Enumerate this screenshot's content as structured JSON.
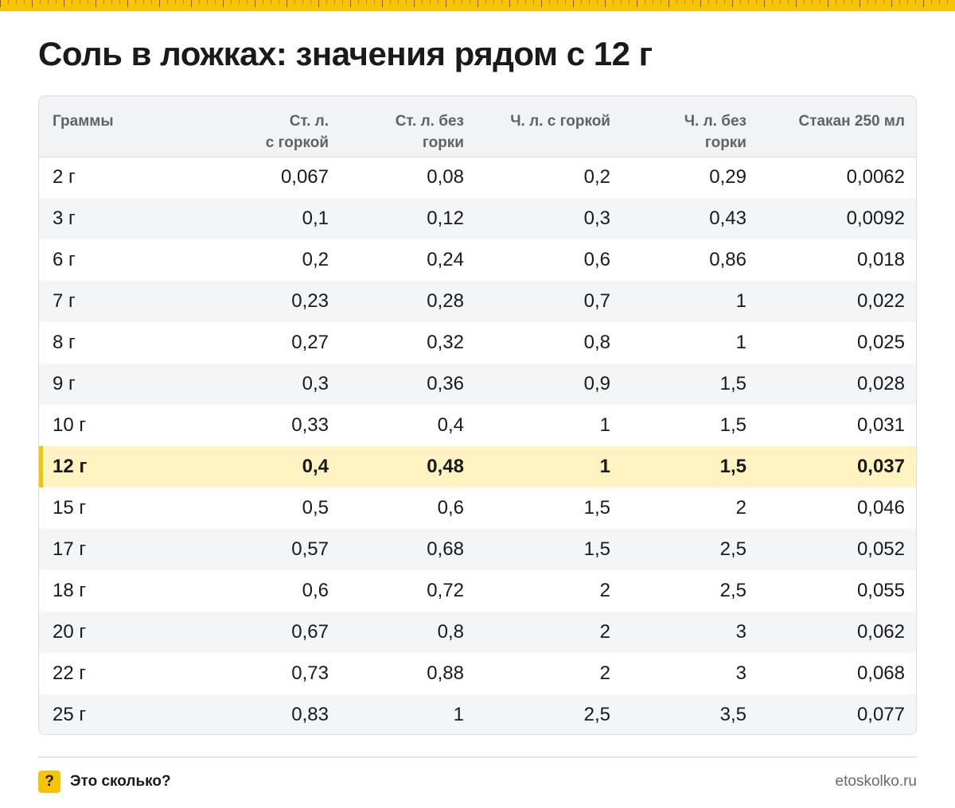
{
  "title": "Соль в ложках: значения рядом с 12 г",
  "table": {
    "headers": [
      [
        "Граммы"
      ],
      [
        "Ст. л.",
        "с горкой"
      ],
      [
        "Ст. л. без",
        "горки"
      ],
      [
        "Ч. л. с горкой"
      ],
      [
        "Ч. л. без",
        "горки"
      ],
      [
        "Стакан 250 мл"
      ]
    ],
    "highlight_row": 7,
    "rows": [
      [
        "2 г",
        "0,067",
        "0,08",
        "0,2",
        "0,29",
        "0,0062"
      ],
      [
        "3 г",
        "0,1",
        "0,12",
        "0,3",
        "0,43",
        "0,0092"
      ],
      [
        "6 г",
        "0,2",
        "0,24",
        "0,6",
        "0,86",
        "0,018"
      ],
      [
        "7 г",
        "0,23",
        "0,28",
        "0,7",
        "1",
        "0,022"
      ],
      [
        "8 г",
        "0,27",
        "0,32",
        "0,8",
        "1",
        "0,025"
      ],
      [
        "9 г",
        "0,3",
        "0,36",
        "0,9",
        "1,5",
        "0,028"
      ],
      [
        "10 г",
        "0,33",
        "0,4",
        "1",
        "1,5",
        "0,031"
      ],
      [
        "12 г",
        "0,4",
        "0,48",
        "1",
        "1,5",
        "0,037"
      ],
      [
        "15 г",
        "0,5",
        "0,6",
        "1,5",
        "2",
        "0,046"
      ],
      [
        "17 г",
        "0,57",
        "0,68",
        "1,5",
        "2,5",
        "0,052"
      ],
      [
        "18 г",
        "0,6",
        "0,72",
        "2",
        "2,5",
        "0,055"
      ],
      [
        "20 г",
        "0,67",
        "0,8",
        "2",
        "3",
        "0,062"
      ],
      [
        "22 г",
        "0,73",
        "0,88",
        "2",
        "3",
        "0,068"
      ],
      [
        "25 г",
        "0,83",
        "1",
        "2,5",
        "3,5",
        "0,077"
      ]
    ]
  },
  "footer": {
    "logo_glyph": "?",
    "brand": "Это сколько?",
    "site": "etoskolko.ru"
  },
  "colors": {
    "accent": "#f6c400",
    "highlight_bg": "#fff3c2",
    "header_bg": "#f1f3f5",
    "stripe_bg": "#f4f5f7"
  }
}
